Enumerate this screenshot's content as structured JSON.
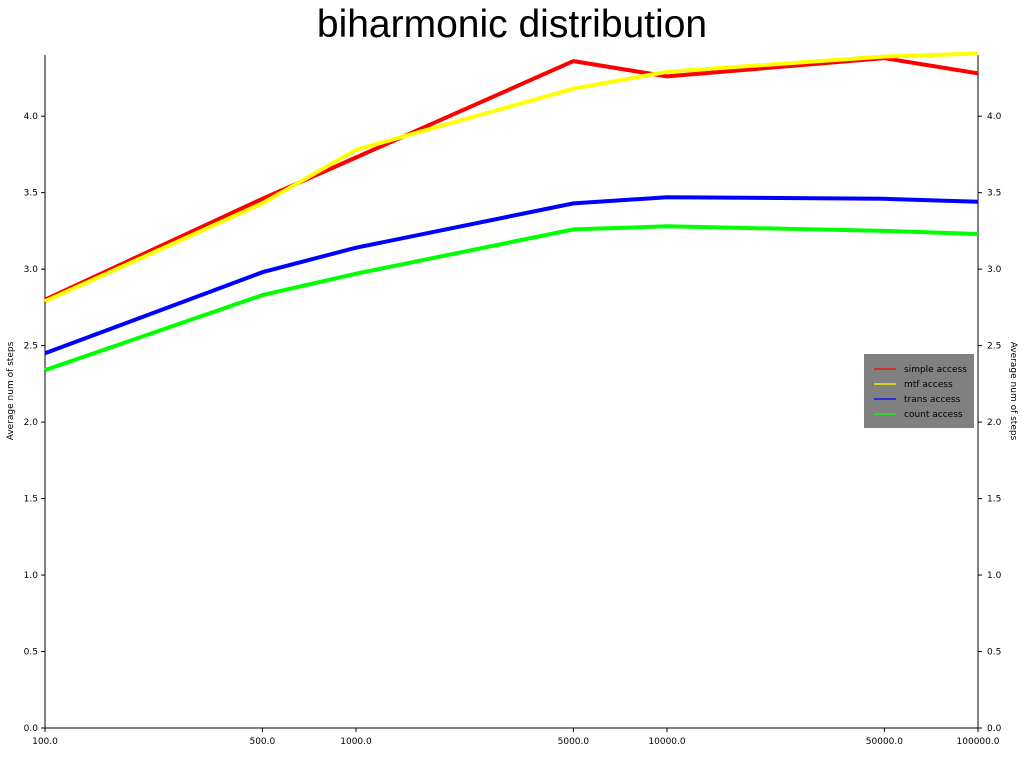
{
  "chart_data": {
    "type": "line",
    "title": "biharmonic distribution",
    "ylabel": "Average num of steps",
    "ylabel_right": "Average num of steps",
    "x_scale": "log",
    "x": [
      100.0,
      500.0,
      1000.0,
      5000.0,
      10000.0,
      50000.0,
      100000.0
    ],
    "x_tick_labels": [
      "100.0",
      "500.0",
      "1000.0",
      "5000.0",
      "10000.0",
      "50000.0",
      "100000.0"
    ],
    "ylim": [
      0.0,
      4.4
    ],
    "y_ticks": [
      0.0,
      0.5,
      1.0,
      1.5,
      2.0,
      2.5,
      3.0,
      3.5,
      4.0
    ],
    "y_tick_labels": [
      "0.0",
      "0.5",
      "1.0",
      "1.5",
      "2.0",
      "2.5",
      "3.0",
      "3.5",
      "4.0"
    ],
    "grid": false,
    "legend_position": "right",
    "legend_background": "#808080",
    "series": [
      {
        "name": "simple access",
        "color": "#ff0000",
        "values": [
          2.8,
          3.46,
          3.73,
          4.36,
          4.26,
          4.38,
          4.28
        ]
      },
      {
        "name": "mtf access",
        "color": "#ffff00",
        "values": [
          2.79,
          3.43,
          3.78,
          4.18,
          4.29,
          4.39,
          4.41
        ]
      },
      {
        "name": "trans access",
        "color": "#0000ff",
        "values": [
          2.45,
          2.98,
          3.14,
          3.43,
          3.47,
          3.46,
          3.44
        ]
      },
      {
        "name": "count access",
        "color": "#00ff00",
        "values": [
          2.34,
          2.83,
          2.97,
          3.26,
          3.28,
          3.25,
          3.23
        ]
      }
    ]
  }
}
